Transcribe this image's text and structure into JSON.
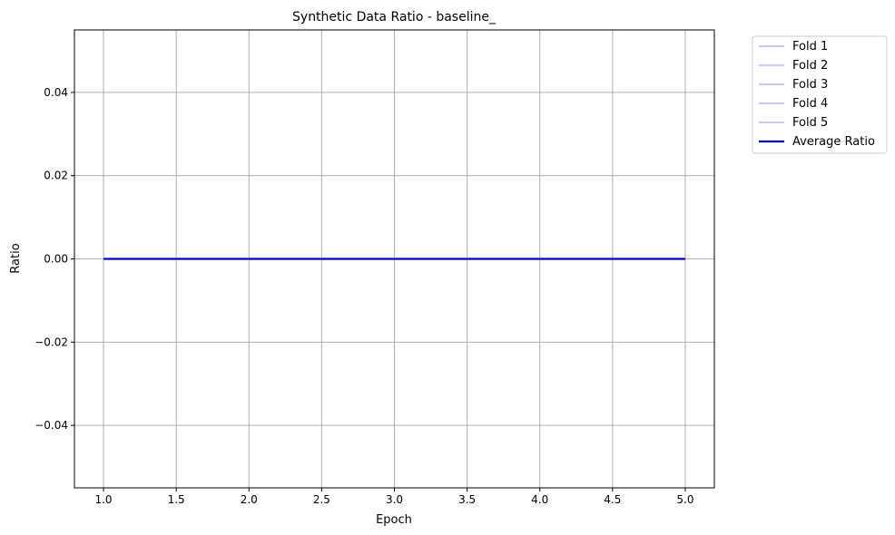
{
  "chart_data": {
    "type": "line",
    "title": "Synthetic Data Ratio - baseline_",
    "xlabel": "Epoch",
    "ylabel": "Ratio",
    "xlim": [
      0.8,
      5.2
    ],
    "ylim": [
      -0.055,
      0.055
    ],
    "x_ticks": [
      1.0,
      1.5,
      2.0,
      2.5,
      3.0,
      3.5,
      4.0,
      4.5,
      5.0
    ],
    "x_tick_labels": [
      "1.0",
      "1.5",
      "2.0",
      "2.5",
      "3.0",
      "3.5",
      "4.0",
      "4.5",
      "5.0"
    ],
    "y_ticks": [
      0.04,
      0.02,
      0.0,
      -0.02,
      -0.04
    ],
    "y_tick_labels": [
      "0.04",
      "0.02",
      "0.00",
      "−0.02",
      "−0.04"
    ],
    "grid": true,
    "legend_position": "outside-top-right",
    "x": [
      1,
      2,
      3,
      4,
      5
    ],
    "series": [
      {
        "name": "Fold 1",
        "values": [
          0,
          0,
          0,
          0,
          0
        ],
        "color": "#aaaaff"
      },
      {
        "name": "Fold 2",
        "values": [
          0,
          0,
          0,
          0,
          0
        ],
        "color": "#aaaaff"
      },
      {
        "name": "Fold 3",
        "values": [
          0,
          0,
          0,
          0,
          0
        ],
        "color": "#aaaaff"
      },
      {
        "name": "Fold 4",
        "values": [
          0,
          0,
          0,
          0,
          0
        ],
        "color": "#aaaaff"
      },
      {
        "name": "Fold 5",
        "values": [
          0,
          0,
          0,
          0,
          0
        ],
        "color": "#aaaaff"
      },
      {
        "name": "Average Ratio",
        "values": [
          0,
          0,
          0,
          0,
          0
        ],
        "color": "#0000cc",
        "emphasis": true
      }
    ]
  }
}
